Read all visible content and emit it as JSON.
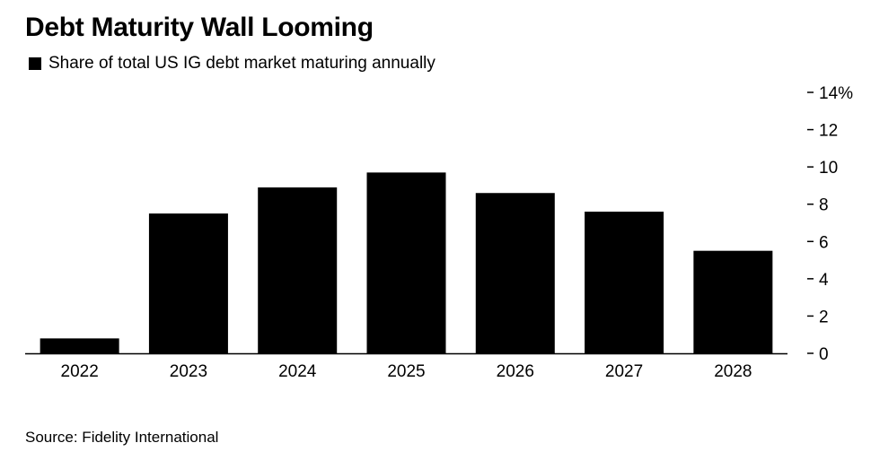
{
  "title": "Debt Maturity Wall Looming",
  "legend": {
    "label": "Share of total US IG debt market maturing annually"
  },
  "source": "Source: Fidelity International",
  "chart_data": {
    "type": "bar",
    "categories": [
      "2022",
      "2023",
      "2024",
      "2025",
      "2026",
      "2027",
      "2028"
    ],
    "series": [
      {
        "name": "Share of total US IG debt market maturing annually",
        "values": [
          0.8,
          7.5,
          8.9,
          9.7,
          8.6,
          7.6,
          5.5
        ],
        "color": "#000000"
      }
    ],
    "ylim": [
      0,
      14
    ],
    "yticks": [
      0,
      2,
      4,
      6,
      8,
      10,
      12,
      14
    ],
    "ytick_labels": [
      "0",
      "2",
      "4",
      "6",
      "8",
      "10",
      "12",
      "14%"
    ],
    "y_axis_position": "right",
    "grid": false
  }
}
